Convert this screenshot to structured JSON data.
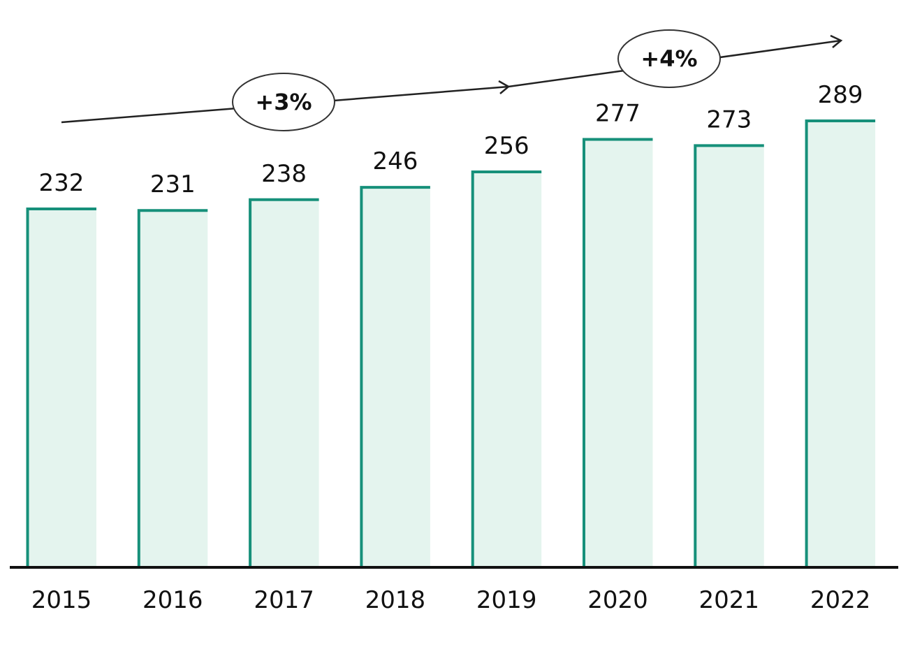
{
  "chart_data": {
    "type": "bar",
    "categories": [
      "2015",
      "2016",
      "2017",
      "2018",
      "2019",
      "2020",
      "2021",
      "2022"
    ],
    "values": [
      232,
      231,
      238,
      246,
      256,
      277,
      273,
      289
    ],
    "title": "",
    "xlabel": "",
    "ylabel": "",
    "ylim": [
      0,
      289
    ],
    "grid": false,
    "legend": "none",
    "annotations": [
      {
        "text": "+3%",
        "from": "2015",
        "to": "2019"
      },
      {
        "text": "+4%",
        "from": "2019",
        "to": "2022"
      }
    ],
    "colors": {
      "bar_fill": "#e4f4ee",
      "bar_edge": "#16907a",
      "axis": "#111111",
      "text": "#111111"
    }
  }
}
